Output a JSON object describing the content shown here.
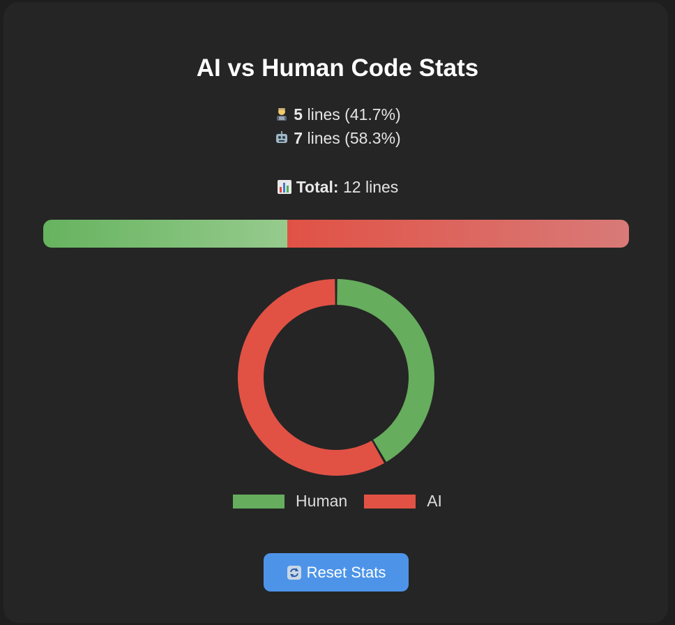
{
  "title": "AI vs Human Code Stats",
  "human": {
    "icon": "technologist-icon",
    "count": "5",
    "text": " lines (41.7%)"
  },
  "ai": {
    "icon": "robot-icon",
    "count": "7",
    "text": " lines (58.3%)"
  },
  "total": {
    "icon": "bar-chart-icon",
    "label": "Total:",
    "text": " 12 lines"
  },
  "legend": {
    "human_label": "Human",
    "ai_label": "AI"
  },
  "reset_button": {
    "icon": "refresh-icon",
    "label": "Reset Stats"
  },
  "colors": {
    "human": "#66ad5d",
    "ai": "#e15245",
    "button": "#4d94e8"
  },
  "chart_data": {
    "type": "pie",
    "categories": [
      "Human",
      "AI"
    ],
    "values": [
      5,
      7
    ],
    "title": "",
    "legend": "bottom"
  }
}
